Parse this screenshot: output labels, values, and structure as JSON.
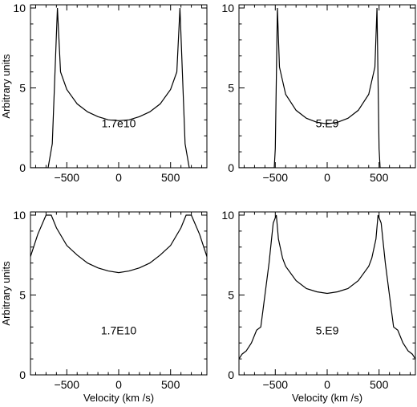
{
  "figure": {
    "ylabel": "Arbitrary units",
    "xlabel": "Velocity (km /s)"
  },
  "chart_data": [
    {
      "type": "line",
      "label": "1.7e10",
      "xlim": [
        -850,
        850
      ],
      "ylim": [
        0,
        10.2
      ],
      "xticks": [
        -500,
        0,
        500
      ],
      "yticks": [
        0,
        5,
        10
      ],
      "x": [
        -850,
        -680,
        -640,
        -590,
        -560,
        -500,
        -400,
        -300,
        -200,
        -100,
        0,
        100,
        200,
        300,
        400,
        500,
        560,
        590,
        640,
        680,
        850
      ],
      "y": [
        0,
        0,
        1.5,
        10,
        6.0,
        4.9,
        4.0,
        3.5,
        3.2,
        3.0,
        2.95,
        3.0,
        3.2,
        3.5,
        4.0,
        4.9,
        6.0,
        10,
        1.5,
        0,
        0
      ]
    },
    {
      "type": "line",
      "label": "5.E9",
      "xlim": [
        -850,
        850
      ],
      "ylim": [
        0,
        10.2
      ],
      "xticks": [
        -500,
        0,
        500
      ],
      "yticks": [
        0,
        5,
        10
      ],
      "x": [
        -850,
        -510,
        -500,
        -480,
        -460,
        -400,
        -300,
        -200,
        -100,
        0,
        100,
        200,
        300,
        400,
        460,
        480,
        500,
        510,
        850
      ],
      "y": [
        0,
        0,
        1.2,
        10,
        6.3,
        4.6,
        3.6,
        3.1,
        2.85,
        2.75,
        2.85,
        3.1,
        3.6,
        4.6,
        6.3,
        10,
        1.2,
        0,
        0
      ]
    },
    {
      "type": "line",
      "label": "1.7E10",
      "xlim": [
        -850,
        850
      ],
      "ylim": [
        0,
        10.2
      ],
      "xticks": [
        -500,
        0,
        500
      ],
      "yticks": [
        0,
        5,
        10
      ],
      "x": [
        -850,
        -780,
        -700,
        -650,
        -600,
        -500,
        -400,
        -300,
        -200,
        -100,
        0,
        100,
        200,
        300,
        400,
        500,
        600,
        650,
        700,
        780,
        850
      ],
      "y": [
        7.4,
        8.8,
        10,
        10,
        9.2,
        8.1,
        7.5,
        7.0,
        6.7,
        6.5,
        6.4,
        6.5,
        6.7,
        7.0,
        7.5,
        8.1,
        9.2,
        10,
        10,
        8.8,
        7.4
      ]
    },
    {
      "type": "line",
      "label": "5.E9",
      "xlim": [
        -850,
        850
      ],
      "ylim": [
        0,
        10.2
      ],
      "xticks": [
        -500,
        0,
        500
      ],
      "yticks": [
        0,
        5,
        10
      ],
      "x": [
        -850,
        -820,
        -780,
        -730,
        -680,
        -640,
        -620,
        -560,
        -520,
        -490,
        -470,
        -430,
        -400,
        -300,
        -200,
        -100,
        0,
        100,
        200,
        300,
        400,
        430,
        470,
        490,
        520,
        560,
        620,
        640,
        680,
        730,
        780,
        820,
        850
      ],
      "y": [
        1.0,
        1.3,
        1.5,
        2.0,
        2.8,
        3.0,
        4.0,
        7.0,
        9.5,
        10,
        8.5,
        7.3,
        6.8,
        5.9,
        5.4,
        5.2,
        5.1,
        5.2,
        5.4,
        5.9,
        6.8,
        7.3,
        8.5,
        10,
        9.5,
        7.0,
        4.0,
        3.0,
        2.8,
        2.0,
        1.5,
        1.3,
        1.0
      ]
    }
  ]
}
